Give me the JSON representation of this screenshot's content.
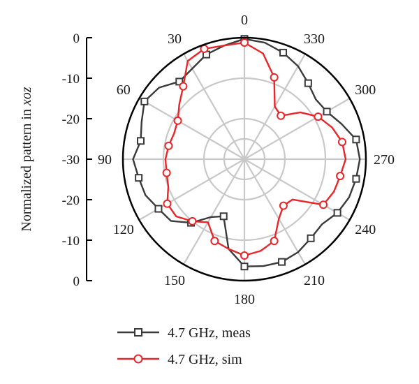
{
  "chart_data": {
    "type": "polar",
    "ylabel": "Normalized pattern in xoz",
    "ylabel_main": "Normalized pattern in ",
    "ylabel_italic": "xoz",
    "y_ticks": [
      "0",
      "-10",
      "-20",
      "-30",
      "-20",
      "-10",
      "0"
    ],
    "y_tick_values": [
      0,
      -10,
      -20,
      -30,
      -20,
      -10,
      0
    ],
    "angle_labels": [
      "0",
      "30",
      "60",
      "90",
      "120",
      "150",
      "180",
      "210",
      "240",
      "270",
      "300",
      "330"
    ],
    "angle_values": [
      0,
      30,
      60,
      90,
      120,
      150,
      180,
      210,
      240,
      270,
      300,
      330
    ],
    "angle_direction": "clockwise-increasing to the left",
    "radial_range": [
      -30,
      0
    ],
    "grid": true,
    "legend_position": "bottom",
    "colors": {
      "meas": "#3a3a3a",
      "sim": "#e8262a",
      "grid": "#c8c8c8",
      "axis": "#000000"
    },
    "series": [
      {
        "name": "4.7 GHz, meas",
        "marker": "square",
        "color": "#3a3a3a",
        "points": [
          [
            0,
            -0.3
          ],
          [
            10,
            -1.5
          ],
          [
            20,
            -2.5
          ],
          [
            30,
            -4.2
          ],
          [
            40,
            -5.0
          ],
          [
            50,
            -2.5
          ],
          [
            60,
            -1.5
          ],
          [
            70,
            -3.0
          ],
          [
            80,
            -4.0
          ],
          [
            90,
            -2.5
          ],
          [
            100,
            -3.5
          ],
          [
            110,
            -4.0
          ],
          [
            120,
            -5.5
          ],
          [
            130,
            -6.3
          ],
          [
            140,
            -9.5
          ],
          [
            150,
            -13.5
          ],
          [
            160,
            -15.0
          ],
          [
            170,
            -7.5
          ],
          [
            180,
            -3.5
          ],
          [
            190,
            -3.2
          ],
          [
            200,
            -3.0
          ],
          [
            210,
            -3.5
          ],
          [
            220,
            -4.5
          ],
          [
            230,
            -5.0
          ],
          [
            240,
            -3.5
          ],
          [
            250,
            -2.5
          ],
          [
            260,
            -2.0
          ],
          [
            270,
            -1.5
          ],
          [
            280,
            -2.0
          ],
          [
            290,
            -4.5
          ],
          [
            300,
            -6.5
          ],
          [
            310,
            -7.0
          ],
          [
            320,
            -5.5
          ],
          [
            330,
            -3.5
          ],
          [
            340,
            -2.0
          ],
          [
            350,
            -0.8
          ]
        ]
      },
      {
        "name": "4.7 GHz, sim",
        "marker": "circle",
        "color": "#e8262a",
        "points": [
          [
            0,
            -1.2
          ],
          [
            10,
            -1.5
          ],
          [
            20,
            -1.0
          ],
          [
            30,
            -2.0
          ],
          [
            40,
            -6.5
          ],
          [
            50,
            -9.0
          ],
          [
            60,
            -11.0
          ],
          [
            70,
            -11.5
          ],
          [
            80,
            -11.0
          ],
          [
            90,
            -10.5
          ],
          [
            100,
            -10.5
          ],
          [
            110,
            -10.0
          ],
          [
            120,
            -8.0
          ],
          [
            130,
            -8.0
          ],
          [
            140,
            -10.0
          ],
          [
            150,
            -12.0
          ],
          [
            160,
            -8.5
          ],
          [
            170,
            -7.5
          ],
          [
            180,
            -6.2
          ],
          [
            190,
            -7.0
          ],
          [
            200,
            -8.5
          ],
          [
            210,
            -13.0
          ],
          [
            220,
            -15.0
          ],
          [
            230,
            -14.5
          ],
          [
            240,
            -7.5
          ],
          [
            250,
            -6.5
          ],
          [
            260,
            -6.0
          ],
          [
            270,
            -5.0
          ],
          [
            280,
            -5.5
          ],
          [
            290,
            -7.0
          ],
          [
            300,
            -9.0
          ],
          [
            310,
            -12.0
          ],
          [
            320,
            -16.0
          ],
          [
            330,
            -15.0
          ],
          [
            340,
            -8.5
          ],
          [
            350,
            -3.5
          ]
        ]
      }
    ]
  }
}
